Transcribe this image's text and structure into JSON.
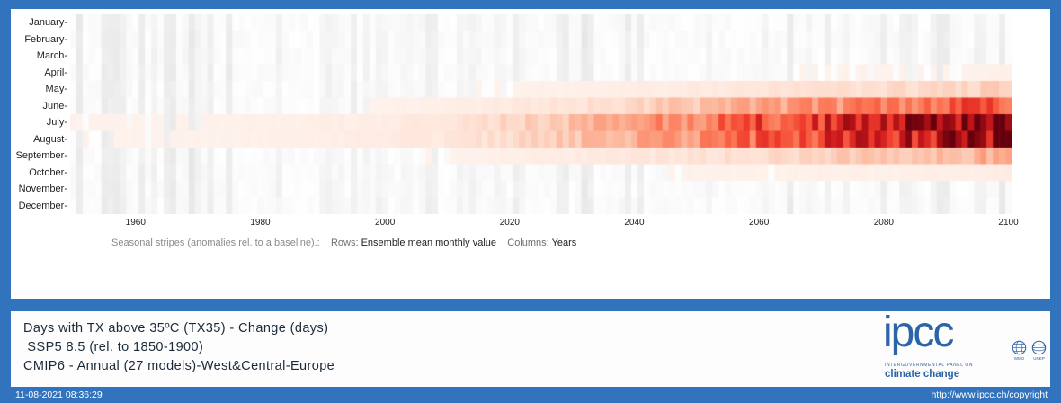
{
  "colors": {
    "frame_blue": "#3273bd",
    "logo_blue": "#2b64a7",
    "heat_max": "#67000d"
  },
  "chart_data": {
    "type": "heatmap",
    "title": "Seasonal stripes (anomalies rel. to a baseline)",
    "rows": [
      "January",
      "February",
      "March",
      "April",
      "May",
      "June",
      "July",
      "August",
      "September",
      "October",
      "November",
      "December"
    ],
    "y_tick_suffix": "-",
    "x_start": 1950,
    "x_end": 2100,
    "x_ticks": [
      1960,
      1980,
      2000,
      2020,
      2040,
      2060,
      2080,
      2100
    ],
    "sample_years": [
      1950,
      1960,
      1970,
      1980,
      1990,
      2000,
      2010,
      2020,
      2030,
      2040,
      2050,
      2060,
      2070,
      2080,
      2090,
      2100
    ],
    "unit": "days",
    "vmin": 0,
    "vmax": 12,
    "colormap": "Reds",
    "legend": "none",
    "grid": false,
    "series": [
      {
        "name": "January",
        "values": [
          0,
          0,
          0,
          0,
          0,
          0,
          0,
          0,
          0,
          0,
          0,
          0,
          0,
          0,
          0,
          0
        ]
      },
      {
        "name": "February",
        "values": [
          0,
          0,
          0,
          0,
          0,
          0,
          0,
          0,
          0,
          0,
          0,
          0,
          0,
          0,
          0,
          0
        ]
      },
      {
        "name": "March",
        "values": [
          0,
          0,
          0,
          0,
          0,
          0,
          0,
          0,
          0,
          0,
          0,
          0,
          0,
          0,
          0,
          0
        ]
      },
      {
        "name": "April",
        "values": [
          0,
          0,
          0,
          0,
          0,
          0,
          0,
          0,
          0.1,
          0.1,
          0.1,
          0.1,
          0.2,
          0.2,
          0.2,
          0.3
        ]
      },
      {
        "name": "May",
        "values": [
          0,
          0,
          0,
          0,
          0,
          0.1,
          0.1,
          0.2,
          0.3,
          0.5,
          0.7,
          1.0,
          1.3,
          1.6,
          1.9,
          2.2
        ]
      },
      {
        "name": "June",
        "values": [
          0,
          0,
          0.1,
          0.1,
          0.1,
          0.2,
          0.4,
          0.7,
          1.2,
          1.8,
          2.6,
          3.4,
          4.3,
          5.2,
          6.0,
          6.8
        ]
      },
      {
        "name": "July",
        "values": [
          0.2,
          0.2,
          0.2,
          0.3,
          0.4,
          0.6,
          1.0,
          1.8,
          2.8,
          4.0,
          5.2,
          6.6,
          8.0,
          9.4,
          10.8,
          12.0
        ]
      },
      {
        "name": "August",
        "values": [
          0.2,
          0.2,
          0.2,
          0.3,
          0.4,
          0.6,
          0.9,
          1.6,
          2.5,
          3.6,
          4.7,
          6.0,
          7.3,
          8.6,
          10.0,
          11.2
        ]
      },
      {
        "name": "September",
        "values": [
          0,
          0,
          0,
          0.1,
          0.1,
          0.1,
          0.2,
          0.4,
          0.6,
          0.9,
          1.2,
          1.6,
          2.0,
          2.5,
          3.0,
          3.5
        ]
      },
      {
        "name": "October",
        "values": [
          0,
          0,
          0,
          0,
          0,
          0,
          0,
          0.1,
          0.1,
          0.1,
          0.2,
          0.2,
          0.3,
          0.3,
          0.4,
          0.5
        ]
      },
      {
        "name": "November",
        "values": [
          0,
          0,
          0,
          0,
          0,
          0,
          0,
          0,
          0,
          0,
          0,
          0,
          0,
          0,
          0,
          0
        ]
      },
      {
        "name": "December",
        "values": [
          0,
          0,
          0,
          0,
          0,
          0,
          0,
          0,
          0,
          0,
          0,
          0,
          0,
          0,
          0,
          0
        ]
      }
    ]
  },
  "caption": {
    "prefix": "Seasonal stripes (anomalies rel. to a baseline).:",
    "rows_label": "Rows:",
    "rows_value": "Ensemble mean monthly value",
    "cols_label": "Columns:",
    "cols_value": "Years"
  },
  "info": {
    "line1": "Days with TX above 35ºC (TX35) - Change (days)",
    "line2": " SSP5 8.5 (rel. to 1850-1900)",
    "line3": "CMIP6 - Annual (27 models)-West&Central-Europe"
  },
  "logo": {
    "word": "ipcc",
    "subtitle1": "INTERGOVERNMENTAL PANEL ON",
    "subtitle2": "climate change",
    "wmo": "WMO",
    "unep": "UNEP"
  },
  "footer": {
    "timestamp": "11-08-2021 08:36:29",
    "copyright_url": "http://www.ipcc.ch/copyright"
  }
}
